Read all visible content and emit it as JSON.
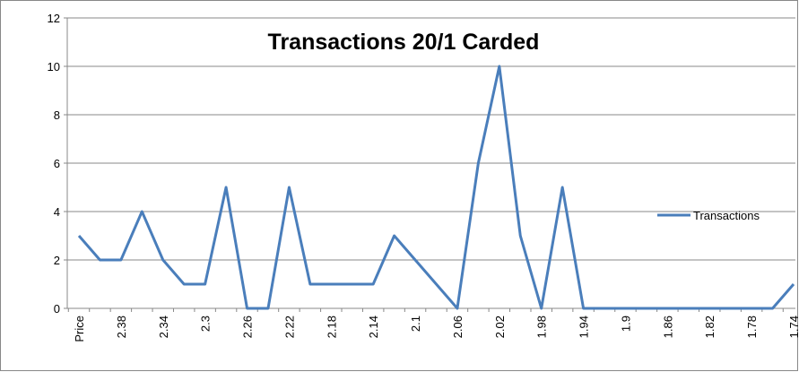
{
  "chart_data": {
    "type": "line",
    "title": "Transactions 20/1 Carded",
    "categories": [
      "Price",
      null,
      "2.38",
      null,
      "2.34",
      null,
      "2.3",
      null,
      "2.26",
      null,
      "2.22",
      null,
      "2.18",
      null,
      "2.14",
      null,
      "2.1",
      null,
      "2.06",
      null,
      "2.02",
      null,
      "1.98",
      null,
      "1.94",
      null,
      "1.9",
      null,
      "1.86",
      null,
      "1.82",
      null,
      "1.78",
      null,
      "1.74"
    ],
    "series": [
      {
        "name": "Transactions",
        "color": "#4a7ebb",
        "values": [
          3,
          2,
          2,
          4,
          2,
          1,
          1,
          5,
          0,
          0,
          5,
          1,
          1,
          1,
          1,
          3,
          2,
          1,
          0,
          6,
          10,
          3,
          0,
          5,
          0,
          0,
          0,
          0,
          0,
          0,
          0,
          0,
          0,
          0,
          1
        ]
      }
    ],
    "ylim": [
      0,
      12
    ],
    "yticks": [
      0,
      2,
      4,
      6,
      8,
      10,
      12
    ],
    "grid": true,
    "legend": "right"
  }
}
